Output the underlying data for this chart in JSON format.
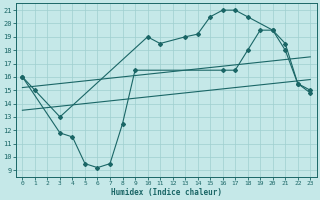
{
  "xlabel": "Humidex (Indice chaleur)",
  "xlim": [
    -0.5,
    23.5
  ],
  "ylim": [
    8.5,
    21.5
  ],
  "yticks": [
    9,
    10,
    11,
    12,
    13,
    14,
    15,
    16,
    17,
    18,
    19,
    20,
    21
  ],
  "xticks": [
    0,
    1,
    2,
    3,
    4,
    5,
    6,
    7,
    8,
    9,
    10,
    11,
    12,
    13,
    14,
    15,
    16,
    17,
    18,
    19,
    20,
    21,
    22,
    23
  ],
  "bg_color": "#c5e8e8",
  "line_color": "#1a6666",
  "grid_color": "#9fcfcf",
  "line1_x": [
    0,
    1,
    3,
    10,
    11,
    13,
    14,
    15,
    16,
    17,
    18,
    20,
    21,
    22,
    23
  ],
  "line1_y": [
    16,
    15,
    13,
    19,
    18.5,
    19,
    19.2,
    20.5,
    21,
    21,
    20.5,
    19.5,
    18,
    15.5,
    14.8
  ],
  "line2_x": [
    0,
    23
  ],
  "line2_y": [
    15.2,
    17.5
  ],
  "line3_x": [
    0,
    3,
    4,
    5,
    6,
    7,
    8,
    9,
    16,
    17,
    18,
    19,
    20,
    21,
    22,
    23
  ],
  "line3_y": [
    16,
    11.8,
    11.5,
    9.5,
    9.2,
    9.5,
    12.5,
    16.5,
    16.5,
    16.5,
    18,
    19.5,
    19.5,
    18.5,
    15.5,
    15.0
  ],
  "line4_x": [
    0,
    23
  ],
  "line4_y": [
    13.5,
    15.8
  ]
}
